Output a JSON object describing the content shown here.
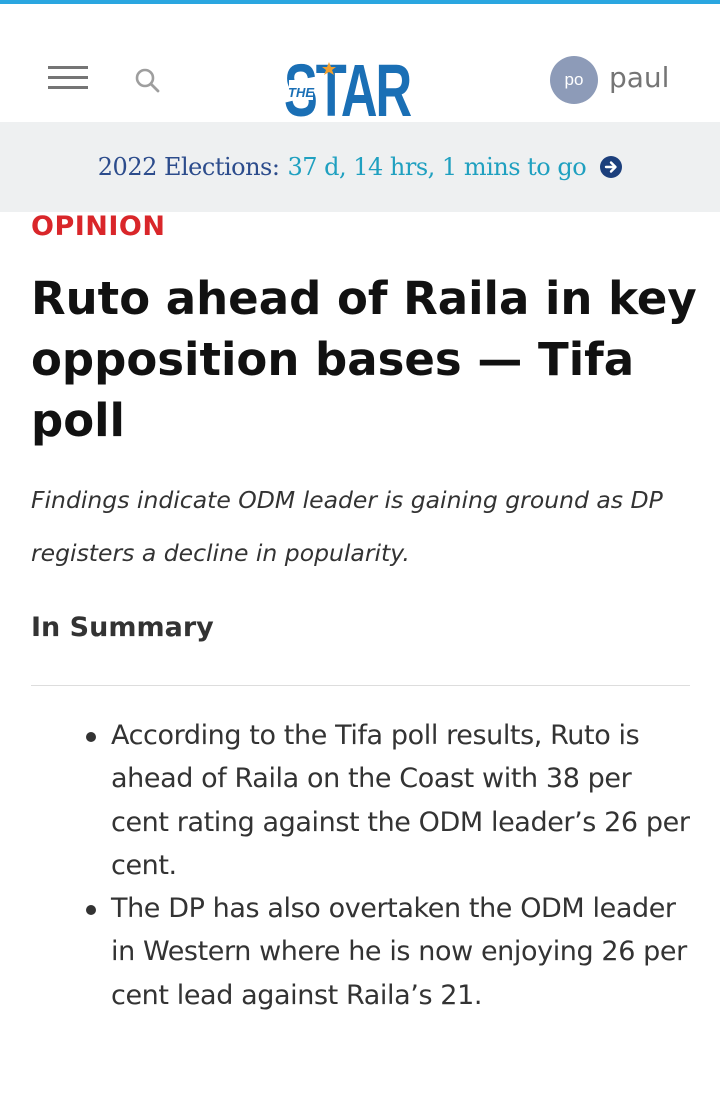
{
  "header": {
    "logo": {
      "the": "THE",
      "star": "STAR"
    },
    "user": {
      "initials": "po",
      "name": "paul"
    }
  },
  "countdown": {
    "label": "2022 Elections:",
    "time_left": "37 d, 14 hrs, 1 mins to go"
  },
  "article": {
    "category": "OPINION",
    "headline": "Ruto ahead of Raila in key opposition bases — Tifa poll",
    "standfirst": "Findings indicate ODM leader is gaining ground as DP registers a decline in popularity.",
    "summary_heading": "In Summary",
    "summary_points": [
      "According to the Tifa poll results, Ruto is ahead of Raila on the Coast with 38 per cent rating against the ODM leader’s 26 per cent.",
      "The DP has also overtaken the ODM leader in Western where he is now enjoying 26 per cent lead against Raila’s 21."
    ]
  },
  "colors": {
    "brand_blue": "#1a6fb5",
    "brand_orange": "#f0a030",
    "category_red": "#d9262a",
    "countdown_label": "#2c4c8c",
    "countdown_time": "#1fa0c0",
    "countdown_bg": "#eef0f1",
    "avatar_bg": "#8d9bb8"
  },
  "icons": {
    "menu": "hamburger-icon",
    "search": "search-icon",
    "countdown_arrow": "arrow-right-circle-icon"
  }
}
